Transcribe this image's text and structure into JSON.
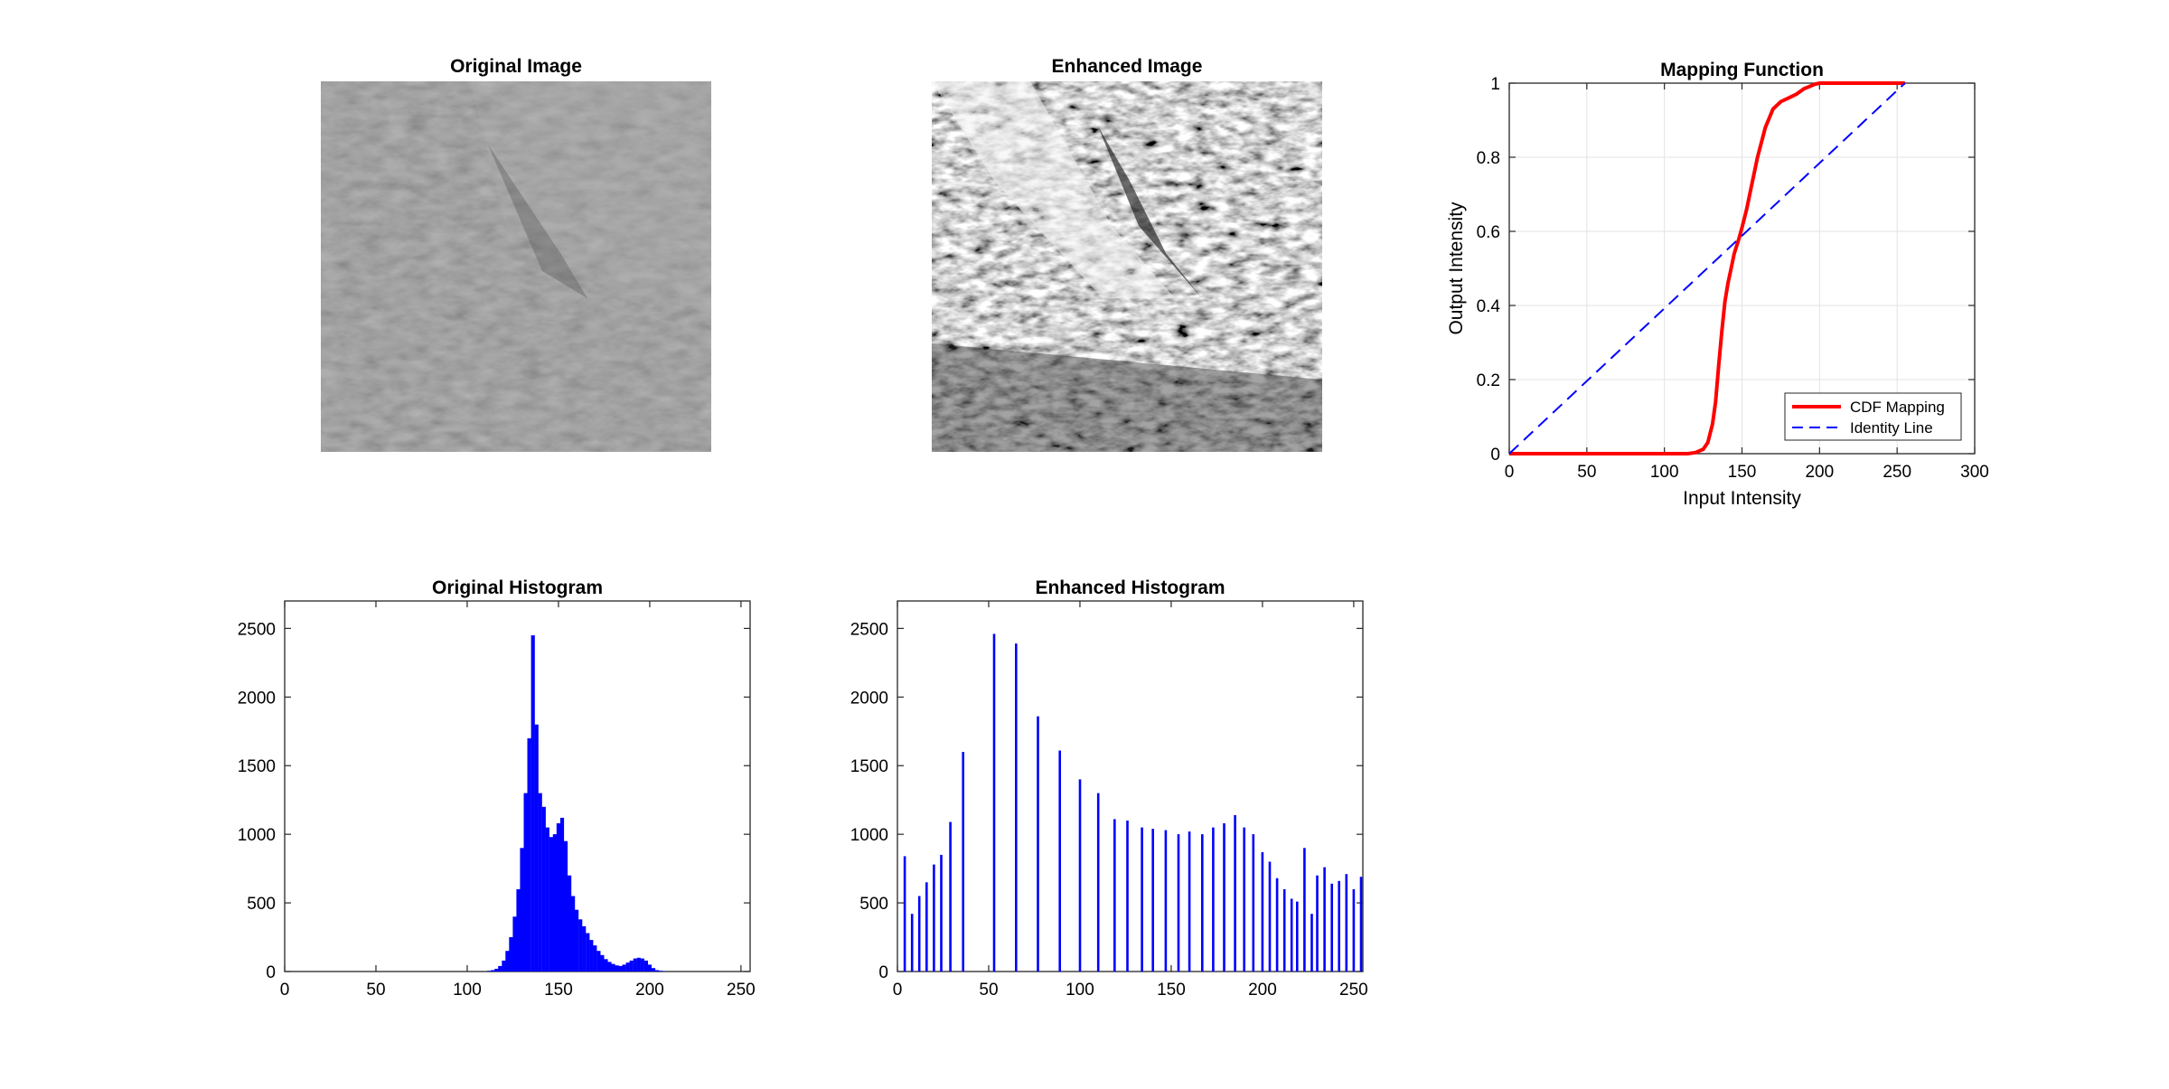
{
  "figure": {
    "original_image": {
      "title": "Original Image"
    },
    "enhanced_image": {
      "title": "Enhanced Image"
    }
  },
  "chart_data": [
    {
      "id": "mapping",
      "type": "line",
      "title": "Mapping Function",
      "xlabel": "Input Intensity",
      "ylabel": "Output Intensity",
      "xlim": [
        0,
        300
      ],
      "ylim": [
        0,
        1
      ],
      "xticks": [
        0,
        50,
        100,
        150,
        200,
        250,
        300
      ],
      "yticks": [
        0,
        0.2,
        0.4,
        0.6,
        0.8,
        1
      ],
      "ytick_labels": [
        "0",
        "0.2",
        "0.4",
        "0.6",
        "0.8",
        "1"
      ],
      "grid": true,
      "legend_position": "bottom-right",
      "series": [
        {
          "name": "CDF Mapping",
          "color": "#ff0000",
          "style": "solid",
          "x": [
            0,
            115,
            120,
            125,
            128,
            131,
            133,
            135,
            137,
            139,
            141,
            143,
            145,
            148,
            150,
            153,
            156,
            160,
            165,
            170,
            175,
            180,
            185,
            190,
            193,
            197,
            200,
            210,
            230,
            255
          ],
          "y": [
            0,
            0,
            0.003,
            0.012,
            0.03,
            0.08,
            0.14,
            0.24,
            0.33,
            0.41,
            0.46,
            0.5,
            0.54,
            0.58,
            0.61,
            0.66,
            0.72,
            0.8,
            0.88,
            0.93,
            0.95,
            0.96,
            0.97,
            0.985,
            0.99,
            0.997,
            1,
            1,
            1,
            1
          ]
        },
        {
          "name": "Identity Line",
          "color": "#0000ff",
          "style": "dashed",
          "x": [
            0,
            255
          ],
          "y": [
            0,
            1
          ]
        }
      ]
    },
    {
      "id": "orig_hist",
      "type": "bar",
      "title": "Original Histogram",
      "xlim": [
        0,
        255
      ],
      "ylim": [
        0,
        2700
      ],
      "xticks": [
        0,
        50,
        100,
        150,
        200,
        250
      ],
      "yticks": [
        0,
        500,
        1000,
        1500,
        2000,
        2500
      ],
      "color": "#0000ff",
      "x": [
        110,
        112,
        114,
        116,
        118,
        120,
        122,
        124,
        126,
        128,
        130,
        132,
        134,
        136,
        138,
        140,
        142,
        144,
        146,
        148,
        150,
        152,
        154,
        156,
        158,
        160,
        162,
        164,
        166,
        168,
        170,
        172,
        174,
        176,
        178,
        180,
        182,
        184,
        186,
        188,
        190,
        192,
        194,
        196,
        198,
        200,
        202,
        204,
        206,
        208,
        210
      ],
      "values": [
        0,
        5,
        10,
        20,
        40,
        80,
        150,
        250,
        400,
        600,
        900,
        1300,
        1700,
        2450,
        1800,
        1300,
        1200,
        1050,
        980,
        1000,
        1080,
        1120,
        950,
        700,
        550,
        450,
        380,
        330,
        280,
        230,
        190,
        150,
        120,
        90,
        70,
        55,
        45,
        40,
        50,
        65,
        80,
        95,
        100,
        95,
        80,
        50,
        25,
        10,
        5,
        2,
        0
      ]
    },
    {
      "id": "enh_hist",
      "type": "bar",
      "title": "Enhanced Histogram",
      "xlim": [
        0,
        255
      ],
      "ylim": [
        0,
        2700
      ],
      "xticks": [
        0,
        50,
        100,
        150,
        200,
        250
      ],
      "yticks": [
        0,
        500,
        1000,
        1500,
        2000,
        2500
      ],
      "color": "#0000ff",
      "x": [
        4,
        8,
        12,
        16,
        20,
        24,
        29,
        36,
        53,
        65,
        77,
        89,
        100,
        110,
        119,
        126,
        134,
        140,
        147,
        154,
        160,
        167,
        173,
        179,
        185,
        190,
        195,
        200,
        204,
        208,
        212,
        216,
        219,
        223,
        227,
        230,
        234,
        238,
        242,
        246,
        250,
        254
      ],
      "values": [
        840,
        420,
        550,
        650,
        780,
        850,
        1090,
        1600,
        2460,
        2390,
        1860,
        1610,
        1400,
        1300,
        1110,
        1100,
        1050,
        1040,
        1030,
        1000,
        1020,
        1000,
        1050,
        1080,
        1140,
        1050,
        1000,
        870,
        800,
        680,
        600,
        530,
        510,
        900,
        420,
        700,
        760,
        640,
        660,
        710,
        600,
        690
      ]
    }
  ]
}
